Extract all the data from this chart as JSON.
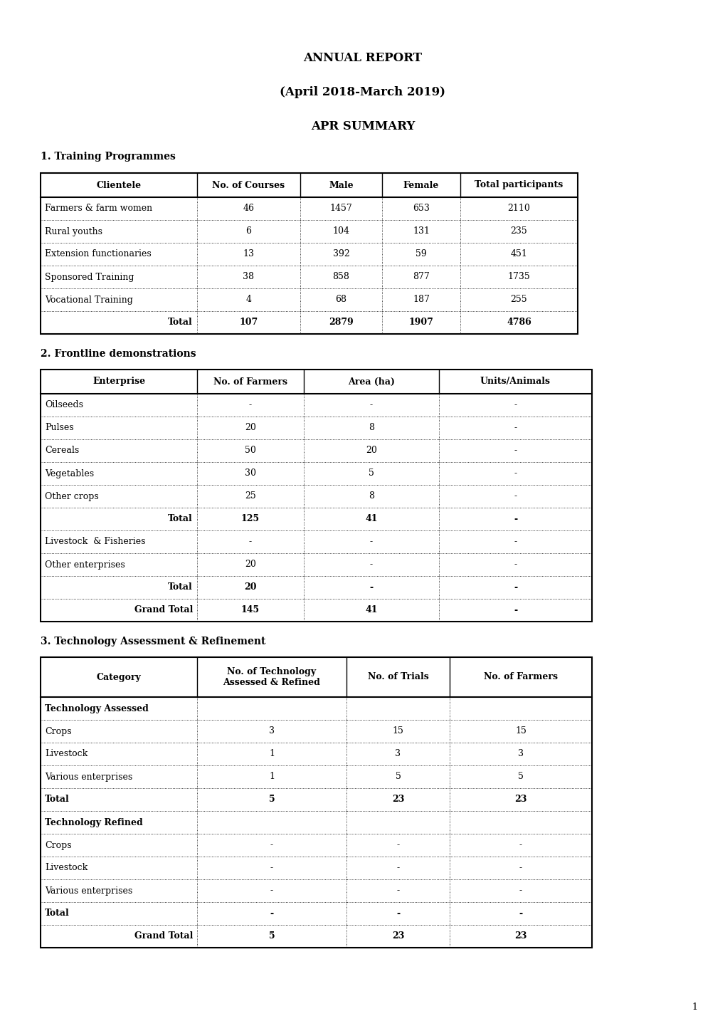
{
  "title1": "ANNUAL REPORT",
  "title2": "(April 2018-March 2019)",
  "title3": "APR SUMMARY",
  "section1_title": "1. Training Programmes",
  "section2_title": "2. Frontline demonstrations",
  "section3_title": "3. Technology Assessment & Refinement",
  "table1_headers": [
    "Clientele",
    "No. of Courses",
    "Male",
    "Female",
    "Total participants"
  ],
  "table1_rows": [
    [
      "Farmers & farm women",
      "46",
      "1457",
      "653",
      "2110"
    ],
    [
      "Rural youths",
      "6",
      "104",
      "131",
      "235"
    ],
    [
      "Extension functionaries",
      "13",
      "392",
      "59",
      "451"
    ],
    [
      "Sponsored Training",
      "38",
      "858",
      "877",
      "1735"
    ],
    [
      "Vocational Training",
      "4",
      "68",
      "187",
      "255"
    ]
  ],
  "table1_total": [
    "Total",
    "107",
    "2879",
    "1907",
    "4786"
  ],
  "table2_headers": [
    "Enterprise",
    "No. of Farmers",
    "Area (ha)",
    "Units/Animals"
  ],
  "table2_rows": [
    [
      "Oilseeds",
      "-",
      "-",
      "-"
    ],
    [
      "Pulses",
      "20",
      "8",
      "-"
    ],
    [
      "Cereals",
      "50",
      "20",
      "-"
    ],
    [
      "Vegetables",
      "30",
      "5",
      "-"
    ],
    [
      "Other crops",
      "25",
      "8",
      "-"
    ],
    [
      "Total",
      "125",
      "41",
      "-"
    ],
    [
      "Livestock  & Fisheries",
      "-",
      "-",
      "-"
    ],
    [
      "Other enterprises",
      "20",
      "-",
      "-"
    ],
    [
      "Total",
      "20",
      "-",
      "-"
    ],
    [
      "Grand Total",
      "145",
      "41",
      "-"
    ]
  ],
  "table2_bold_rows": [
    5,
    8,
    9
  ],
  "table3_headers": [
    "Category",
    "No. of Technology\nAssessed & Refined",
    "No. of Trials",
    "No. of Farmers"
  ],
  "table3_rows": [
    [
      "Technology Assessed",
      "",
      "",
      ""
    ],
    [
      "Crops",
      "3",
      "15",
      "15"
    ],
    [
      "Livestock",
      "1",
      "3",
      "3"
    ],
    [
      "Various enterprises",
      "1",
      "5",
      "5"
    ],
    [
      "Total",
      "5",
      "23",
      "23"
    ],
    [
      "Technology Refined",
      "",
      "",
      ""
    ],
    [
      "Crops",
      "-",
      "-",
      "-"
    ],
    [
      "Livestock",
      "-",
      "-",
      "-"
    ],
    [
      "Various enterprises",
      "-",
      "-",
      "-"
    ],
    [
      "Total",
      "-",
      "-",
      "-"
    ],
    [
      "Grand Total",
      "5",
      "23",
      "23"
    ]
  ],
  "table3_bold_rows": [
    0,
    4,
    5,
    9,
    10
  ],
  "background_color": "#ffffff",
  "page_number": "1"
}
